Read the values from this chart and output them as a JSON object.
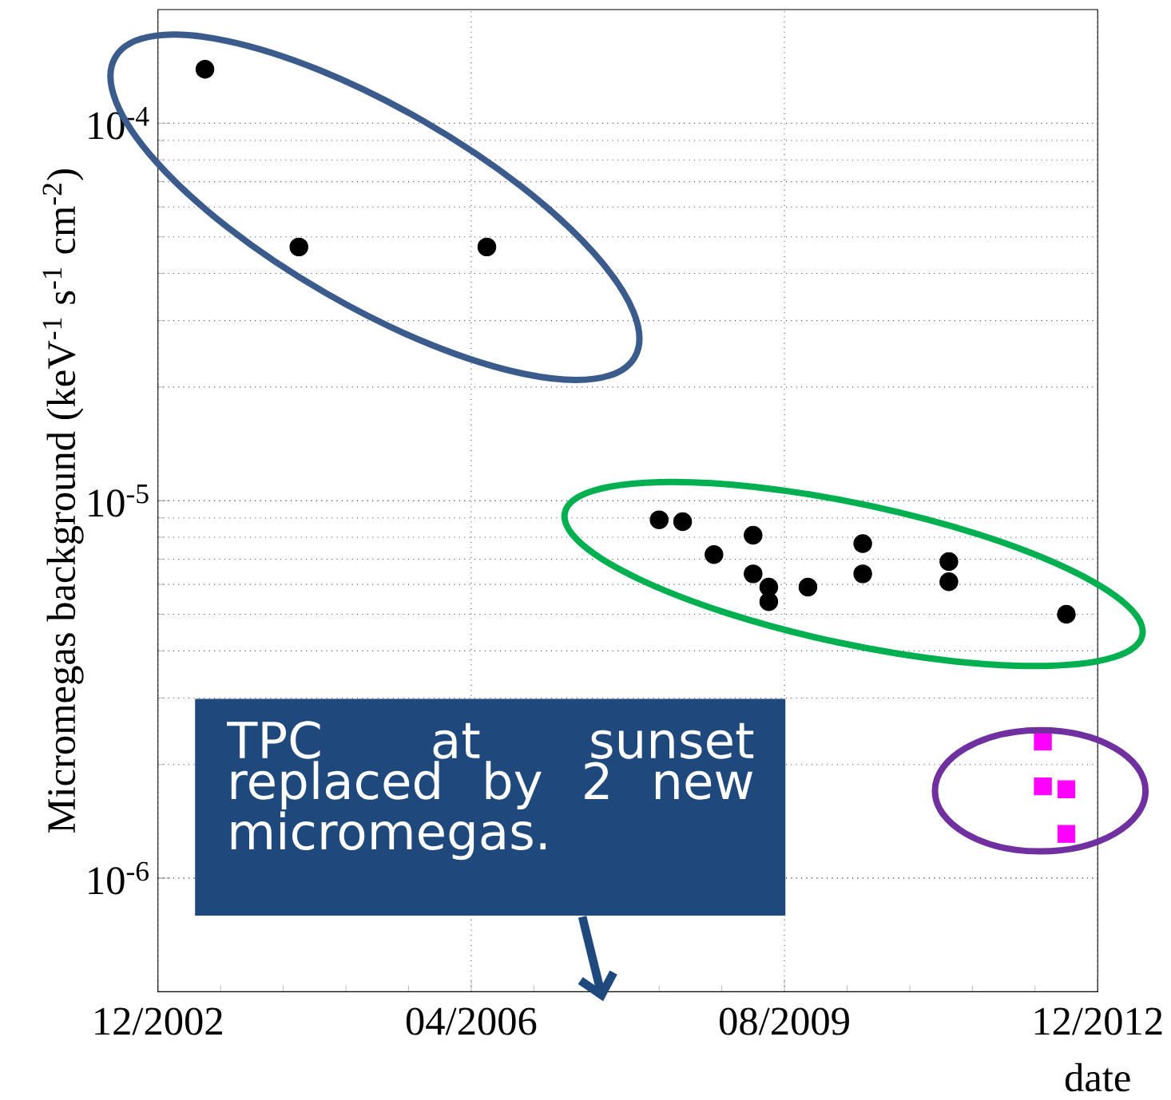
{
  "chart_data": {
    "type": "scatter",
    "xlabel": "date",
    "ylabel": "Micromegas background (keV$^{-1}$ s$^{-1}$ cm$^{-2}$)",
    "log": "y",
    "grid": true,
    "xlim": [
      "2002-12",
      "2012-12"
    ],
    "ylim": [
      5e-07,
      0.0002
    ],
    "xticks": [
      {
        "value": "2002-12",
        "label": "12/2002"
      },
      {
        "value": "2006-04",
        "label": "04/2006"
      },
      {
        "value": "2009-08",
        "label": "08/2009"
      },
      {
        "value": "2012-12",
        "label": "12/2012"
      }
    ],
    "yticks": [
      {
        "value": 1e-06,
        "label": "10$^{-6}$"
      },
      {
        "value": 1e-05,
        "label": "10$^{-5}$"
      },
      {
        "value": 0.0001,
        "label": "10$^{-4}$"
      }
    ],
    "series": [
      {
        "color": "#000000",
        "marker": "circle",
        "x": [
          "2003-06",
          "2004-06",
          "2006-06",
          "2008-04",
          "2008-07",
          "2008-11",
          "2009-04",
          "2009-04",
          "2009-06",
          "2009-06",
          "2009-11",
          "2010-06",
          "2010-06",
          "2011-05",
          "2011-05",
          "2012-08"
        ],
        "values": [
          0.000139,
          4.7e-05,
          4.7e-05,
          8.9e-06,
          8.8e-06,
          7.2e-06,
          8.1e-06,
          6.4e-06,
          5.4e-06,
          5.9e-06,
          5.9e-06,
          7.7e-06,
          6.4e-06,
          6.9e-06,
          6.1e-06,
          5e-06
        ]
      },
      {
        "color": "#ff00ff",
        "marker": "square",
        "x": [
          "2012-05",
          "2012-05",
          "2012-08",
          "2012-08"
        ],
        "values": [
          2.3e-06,
          1.75e-06,
          1.72e-06,
          1.31e-06
        ]
      }
    ],
    "annotations": [
      "TPC at sunset replaced by 2 new micromegas."
    ]
  }
}
